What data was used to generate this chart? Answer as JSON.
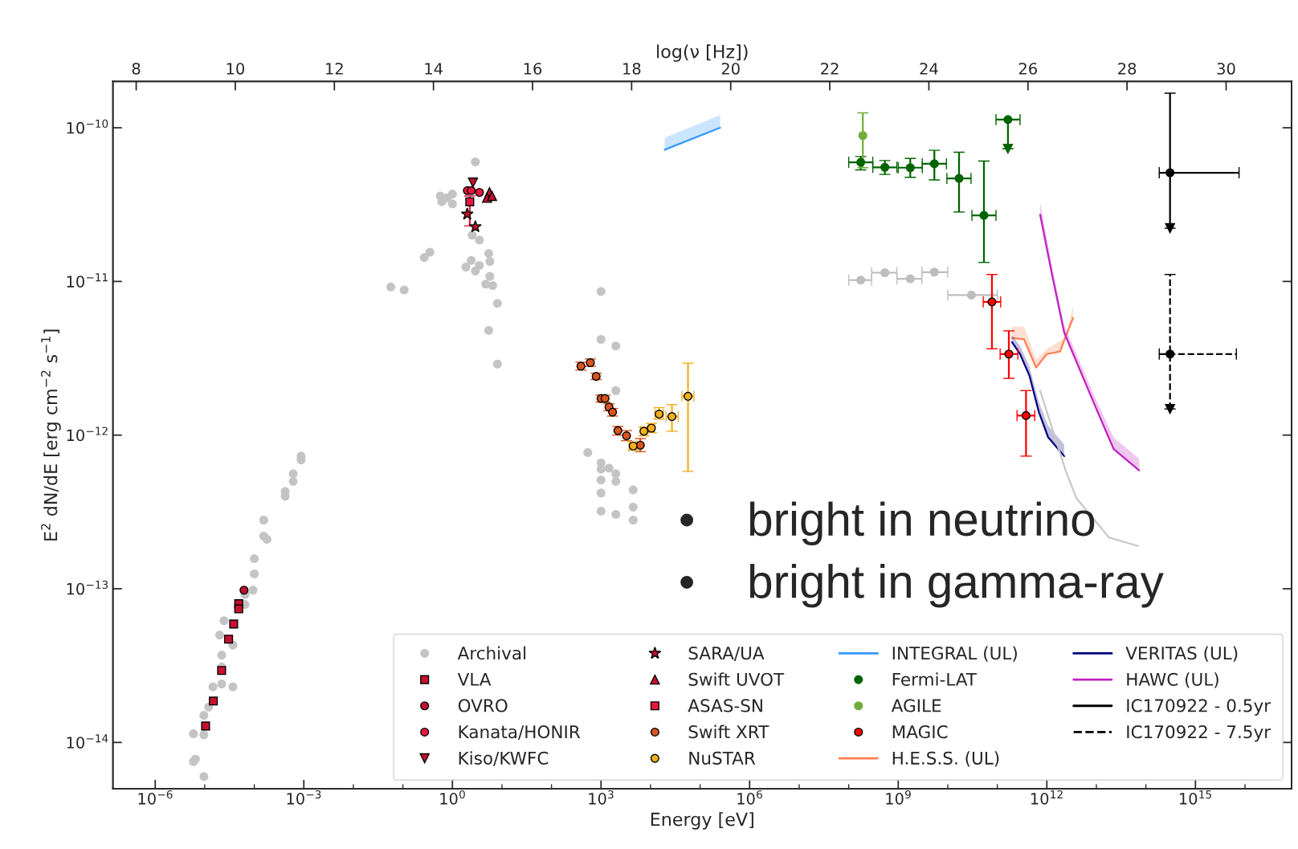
{
  "chart_data": {
    "type": "scatter",
    "xlabel": "Energy [eV]",
    "ylabel": "E$^{2}$ dN/dE [erg cm$^{−2}$ s$^{−1}$]",
    "x2label": "log(ν [Hz])",
    "log": "xy",
    "grid": false,
    "legend": "bottom right",
    "xlim": [
      1.4e-07,
      8.7e+16
    ],
    "ylim": [
      5e-15,
      2e-10
    ],
    "xticks": [
      {
        "value": 1e-06,
        "label": "10$^{−6}$"
      },
      {
        "value": 0.001,
        "label": "10$^{−3}$"
      },
      {
        "value": 1,
        "label": "10$^{0}$"
      },
      {
        "value": 1000.0,
        "label": "10$^{3}$"
      },
      {
        "value": 1000000.0,
        "label": "10$^{6}$"
      },
      {
        "value": 1000000000.0,
        "label": "10$^{9}$"
      },
      {
        "value": 1000000000000.0,
        "label": "10$^{12}$"
      },
      {
        "value": 1000000000000000.0,
        "label": "10$^{15}$"
      }
    ],
    "yticks": [
      {
        "value": 1e-14,
        "label": "10$^{−14}$"
      },
      {
        "value": 1e-13,
        "label": "10$^{−13}$"
      },
      {
        "value": 1e-12,
        "label": "10$^{−12}$"
      },
      {
        "value": 1e-11,
        "label": "10$^{−11}$"
      },
      {
        "value": 1e-10,
        "label": "10$^{−10}$"
      }
    ],
    "x2lim": [
      7.53,
      31.32
    ],
    "x2ticks": [
      8,
      10,
      12,
      14,
      16,
      18,
      20,
      22,
      24,
      26,
      28,
      30
    ],
    "annotations": [
      "•    bright in neutrino",
      "•    bright in gamma-ray"
    ],
    "series": [
      {
        "name": "Archival",
        "marker": "circle",
        "color": "#c4c4c4",
        "x": [
          0.00088,
          0.00088,
          0.00061,
          0.00061,
          0.00042,
          0.00042,
          0.000155,
          0.000155,
          0.00018,
          0.0001,
          0.0001,
          9.4e-05,
          6.5e-05,
          6.5e-05,
          2.45e-05,
          2e-05,
          3.7e-05,
          2.2e-05,
          2.2e-05,
          2.2e-05,
          3.7e-05,
          1.46e-05,
          1.2e-05,
          9.6e-06,
          9.6e-06,
          5.9e-06,
          6.5e-06,
          5.9e-06,
          9.6e-06,
          2.9,
          0.57,
          0.78,
          1.0,
          1.0,
          0.61,
          2.5,
          3.5,
          0.35,
          0.27,
          2.4,
          1.87,
          2.9,
          3.5,
          5.4,
          5.7,
          5.7,
          4.7,
          6.5,
          8.1,
          0.057,
          0.106,
          5.4,
          8.1,
          1000,
          1000,
          1990,
          1990,
          540,
          1000,
          1000,
          1450,
          1990,
          1990,
          1000,
          1000,
          4450,
          1000,
          1990,
          4450,
          4450
        ],
        "values": [
          7.3e-13,
          6.9e-13,
          5.6e-13,
          5e-13,
          4.3e-13,
          4e-13,
          2.8e-13,
          2.2e-13,
          2.1e-13,
          1.57e-13,
          1.25e-13,
          9.8e-14,
          9.2e-14,
          7.9e-14,
          6.2e-14,
          5e-14,
          4.3e-14,
          3.7e-14,
          3.1e-14,
          2.4e-14,
          2.3e-14,
          2.3e-14,
          1.7e-14,
          1.5e-14,
          1.12e-14,
          1.14e-14,
          7.8e-15,
          7.5e-15,
          6e-15,
          6e-11,
          3.6e-11,
          3.5e-11,
          3.7e-11,
          3.2e-11,
          3.3e-11,
          2e-11,
          1.86e-11,
          1.55e-11,
          1.43e-11,
          1.37e-11,
          1.24e-11,
          1.17e-11,
          1.27e-11,
          1.52e-11,
          1.35e-11,
          1.08e-11,
          9.6e-12,
          9.4e-12,
          7.2e-12,
          9.2e-12,
          8.8e-12,
          4.8e-12,
          2.9e-12,
          8.6e-12,
          4.2e-12,
          3.8e-12,
          1.95e-12,
          7.7e-13,
          6.6e-13,
          6e-13,
          6.1e-13,
          5.6e-13,
          5e-13,
          5.1e-13,
          4.2e-13,
          4.4e-13,
          3.2e-13,
          3.05e-13,
          3.4e-13,
          2.8e-13
        ]
      },
      {
        "marker": "circle",
        "color": "#bdbdbd",
        "x": [
          175000000.0,
          537000000.0,
          1750000000.0,
          5360000000.0,
          30000000000.0
        ],
        "values": [
          1.02e-11,
          1.14e-11,
          1.04e-11,
          1.15e-11,
          8.15e-12
        ],
        "xerrors": [
          [
            100000000.0,
            290000000.0
          ],
          [
            290000000.0,
            940000000.0
          ],
          [
            940000000.0,
            3000000000.0
          ],
          [
            3000000000.0,
            10000000000.0
          ],
          [
            10000000000.0,
            100000000000.0
          ]
        ]
      },
      {
        "name": "VLA",
        "marker": "square",
        "color": "#c8102e",
        "x": [
          4.85e-05,
          4.85e-05,
          3.84e-05,
          3.03e-05,
          2.19e-05,
          1.49e-05,
          1.04e-05
        ],
        "values": [
          8e-14,
          7.4e-14,
          5.9e-14,
          4.7e-14,
          2.94e-14,
          1.86e-14,
          1.28e-14
        ]
      },
      {
        "name": "OVRO",
        "marker": "circle",
        "color": "#c01030",
        "x": [
          6.2e-05
        ],
        "values": [
          9.8e-14
        ]
      },
      {
        "name": "Kanata/HONIR",
        "marker": "circle",
        "color": "#e8173f",
        "x": [
          2.0,
          2.4,
          3.5
        ],
        "values": [
          3.9e-11,
          3.9e-11,
          3.8e-11
        ]
      },
      {
        "name": "Kiso/KWFC",
        "marker": "triangle_down",
        "color": "#c8102e",
        "x": [
          2.6
        ],
        "values": [
          4.4e-11
        ]
      },
      {
        "name": "SARA/UA",
        "marker": "star",
        "color": "#c01030",
        "x": [
          1.99,
          2.9
        ],
        "values": [
          2.74e-11,
          2.27e-11
        ]
      },
      {
        "name": "Swift UVOT",
        "marker": "triangle",
        "color": "#c8102e",
        "x": [
          5.6,
          5.0,
          6.3
        ],
        "values": [
          3.8e-11,
          3.5e-11,
          3.6e-11
        ]
      },
      {
        "name": "ASAS-SN",
        "marker": "square",
        "color": "#e8173f",
        "x": [
          2.24
        ],
        "values": [
          3.3e-11
        ],
        "errors": [
          [
            2.3e-11,
            3.6e-11
          ]
        ]
      },
      {
        "name": "Swift XRT",
        "marker": "circle",
        "color": "#d9541e",
        "x": [
          393,
          608,
          798,
          1000,
          1205,
          1450,
          1710,
          2190,
          3270,
          6220
        ],
        "values": [
          2.81e-12,
          2.96e-12,
          2.41e-12,
          1.73e-12,
          1.73e-12,
          1.52e-12,
          1.41e-12,
          1.07e-12,
          9.9e-13,
          8.6e-13
        ],
        "errors": [
          [
            2.65e-12,
            2.98e-12
          ],
          [
            2.8e-12,
            3.13e-12
          ],
          [
            2.3e-12,
            2.53e-12
          ],
          [
            1.64e-12,
            1.82e-12
          ],
          [
            1.64e-12,
            1.82e-12
          ],
          [
            1.44e-12,
            1.6e-12
          ],
          [
            1.33e-12,
            1.49e-12
          ],
          [
            1e-12,
            1.14e-12
          ],
          [
            9.2e-13,
            1.07e-12
          ],
          [
            7.8e-13,
            9.5e-13
          ]
        ]
      },
      {
        "name": "NuSTAR",
        "marker": "circle",
        "color": "#f2b01e",
        "x": [
          4450,
          7330,
          10400,
          14900,
          27000,
          57000
        ],
        "values": [
          8.5e-13,
          1.06e-12,
          1.11e-12,
          1.37e-12,
          1.32e-12,
          1.79e-12
        ],
        "errors": [
          [
            8e-13,
            9e-13
          ],
          [
            9.9e-13,
            1.13e-12
          ],
          [
            1.04e-12,
            1.19e-12
          ],
          [
            1.27e-12,
            1.51e-12
          ],
          [
            1.06e-12,
            1.58e-12
          ],
          [
            5.8e-13,
            2.94e-12
          ]
        ],
        "xerrors": [
          [
            3700,
            5300
          ],
          [
            6300,
            8500
          ],
          [
            9000,
            12000
          ],
          [
            12300,
            18000
          ],
          [
            20500,
            36000
          ],
          [
            43000,
            75000
          ]
        ]
      },
      {
        "name": "INTEGRAL (UL)",
        "type": "line",
        "color": "#3399ff",
        "x": [
          19300.0,
          254000.0
        ],
        "values": [
          7.2e-11,
          1e-10
        ],
        "lower": [
          7.2e-11,
          1e-10
        ],
        "upper": [
          8.6e-11,
          1.21e-10
        ]
      },
      {
        "name": "Fermi-LAT",
        "marker": "circle",
        "color": "#006400",
        "x": [
          175000000.0,
          537000000.0,
          1750000000.0,
          5360000000.0,
          16900000000.0,
          53700000000.0,
          164000000000.0
        ],
        "values": [
          5.96e-11,
          5.53e-11,
          5.5e-11,
          5.83e-11,
          4.68e-11,
          2.69e-11,
          1.13e-10
        ],
        "errors": [
          [
            5.32e-11,
            6.5e-11
          ],
          [
            4.97e-11,
            6.12e-11
          ],
          [
            4.76e-11,
            6.32e-11
          ],
          [
            4.58e-11,
            7.13e-11
          ],
          [
            2.83e-11,
            6.93e-11
          ],
          [
            1.33e-11,
            6.07e-11
          ],
          [
            7.3e-11,
            1.13e-10
          ]
        ],
        "xerrors": [
          [
            100000000.0,
            306000000.0
          ],
          [
            307000000.0,
            940000000.0
          ],
          [
            1000000000.0,
            3060000000.0
          ],
          [
            3060000000.0,
            9400000000.0
          ],
          [
            9600000000.0,
            29500000000.0
          ],
          [
            30700000000.0,
            94000000000.0
          ],
          [
            94000000000.0,
            288000000000.0
          ]
        ]
      },
      {
        "marker": "triangle_down",
        "color": "#006400",
        "x": [
          164000000000.0
        ],
        "values": [
          7.3e-11
        ]
      },
      {
        "name": "AGILE",
        "marker": "circle",
        "color": "#72ad3c",
        "x": [
          193000000.0
        ],
        "values": [
          8.9e-11
        ],
        "errors": [
          [
            5.5e-11,
            1.25e-10
          ]
        ]
      },
      {
        "name": "MAGIC",
        "marker": "circle",
        "color": "#ff0000",
        "x": [
          78000000000.0,
          171000000000.0,
          380000000000.0
        ],
        "values": [
          7.36e-12,
          3.37e-12,
          1.34e-12
        ],
        "errors": [
          [
            3.65e-12,
            1.11e-11
          ],
          [
            2.34e-12,
            4.77e-12
          ],
          [
            7.3e-13,
            1.95e-12
          ]
        ],
        "xerrors": [
          [
            52000000000.0,
            117000000000.0
          ],
          [
            114000000000.0,
            260000000000.0
          ],
          [
            250000000000.0,
            570000000000.0
          ]
        ]
      },
      {
        "name": "H.E.S.S. (UL)",
        "type": "line",
        "color": "#ff7f50",
        "x": [
          198000000000.0,
          347000000000.0,
          608000000000.0,
          998000000000.0,
          1860000000000.0,
          2330000000000.0,
          3390000000000.0
        ],
        "values": [
          4.28e-12,
          4.2e-12,
          2.75e-12,
          3.37e-12,
          3.5e-12,
          4.28e-12,
          5.78e-12
        ],
        "lower": [
          4.28e-12,
          4.2e-12,
          2.75e-12,
          3.37e-12,
          3.5e-12,
          4.28e-12,
          5.78e-12
        ],
        "upper": [
          5.09e-12,
          5.09e-12,
          3.1e-12,
          3.65e-12,
          4.11e-12,
          4.28e-12,
          6.93e-12
        ]
      },
      {
        "name": "VERITAS (UL)",
        "type": "line",
        "color": "#000080",
        "x": [
          198000000000.0,
          288000000000.0,
          445000000000.0,
          687000000000.0,
          1060000000000.0,
          2240000000000.0
        ],
        "values": [
          4.03e-12,
          3.37e-12,
          2.44e-12,
          1.42e-12,
          9.7e-13,
          7.3e-13
        ],
        "lower": [
          4.03e-12,
          3.37e-12,
          2.44e-12,
          1.42e-12,
          9.7e-13,
          7.3e-13
        ],
        "upper": [
          4.5e-12,
          3.8e-12,
          2.8e-12,
          1.65e-12,
          1.15e-12,
          8.7e-13
        ]
      },
      {
        "type": "line",
        "color": "#c8c8c8",
        "x": [
          730000000000.0,
          1280000000000.0,
          2390000000000.0,
          3930000000000.0,
          18200000000000.0,
          69700000000000.0
        ],
        "values": [
          1.95e-12,
          1.11e-12,
          5.9e-13,
          3.9e-13,
          2.15e-13,
          1.9e-13
        ]
      },
      {
        "name": "HAWC (UL)",
        "type": "line",
        "color": "#c020c0",
        "x": [
          733000000000.0,
          1280000000000.0,
          2240000000000.0,
          5050000000000.0,
          10000000000000.0,
          22400000000000.0,
          73100000000000.0
        ],
        "values": [
          2.72e-11,
          1.1e-11,
          4.65e-12,
          2.49e-12,
          1.48e-12,
          8.1e-13,
          5.9e-13
        ],
        "lower": [
          2.72e-11,
          1.1e-11,
          4.65e-12,
          2.49e-12,
          1.48e-12,
          8.1e-13,
          5.9e-13
        ],
        "upper": [
          3.26e-11,
          1.25e-11,
          5.2e-12,
          2.8e-12,
          1.68e-12,
          9.6e-13,
          7e-13
        ]
      },
      {
        "name": "IC170922 - 0.5yr",
        "marker": "circle",
        "color": "#000000",
        "line_style": "solid",
        "x": [
          307000000000000.0
        ],
        "values": [
          5.1e-11
        ],
        "errors": [
          [
            2.22e-11,
            1.68e-10
          ]
        ],
        "xerrors": [
          [
            186000000000000.0,
            7600000000000000.0
          ]
        ]
      },
      {
        "name": "IC170922 - 7.5yr",
        "marker": "circle",
        "color": "#000000",
        "line_style": "dashed",
        "x": [
          307000000000000.0
        ],
        "values": [
          3.37e-12
        ],
        "errors": [
          [
            1.48e-12,
            1.11e-11
          ]
        ],
        "xerrors": [
          [
            186000000000000.0,
            6700000000000000.0
          ]
        ]
      },
      {
        "marker": "triangle_down",
        "color": "#000000",
        "x": [
          307000000000000.0,
          307000000000000.0
        ],
        "values": [
          2.22e-11,
          1.48e-12
        ]
      }
    ]
  }
}
